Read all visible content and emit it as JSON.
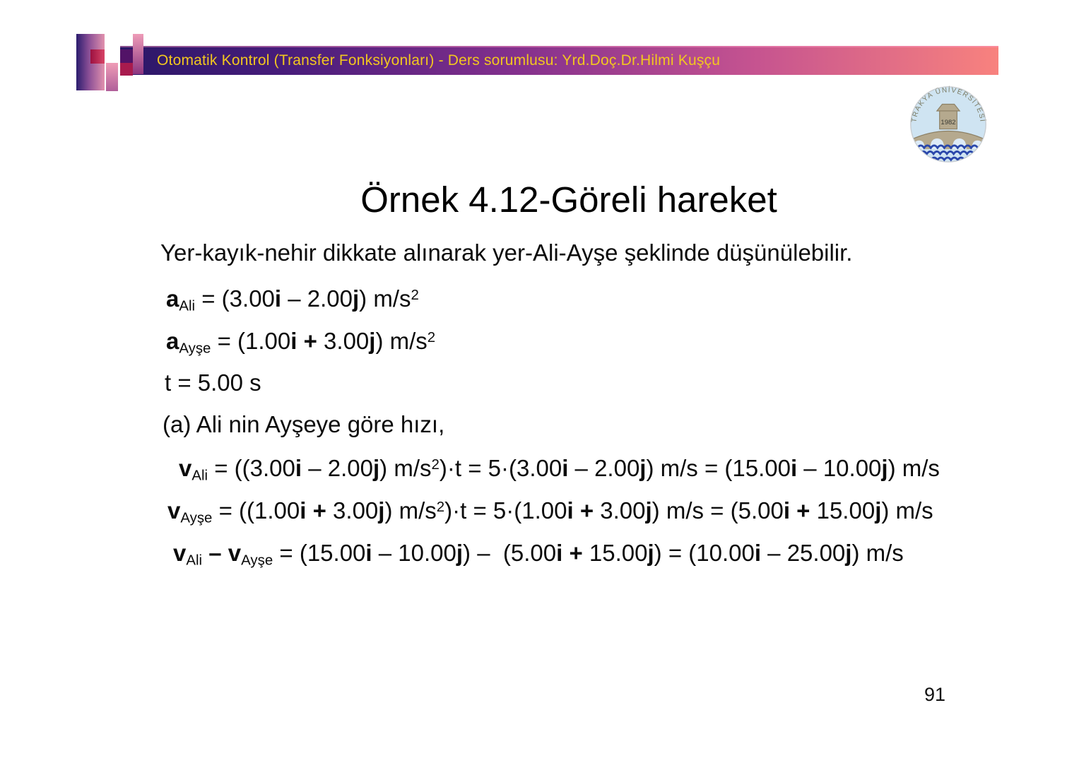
{
  "header": {
    "title": "Otomatik Kontrol (Transfer Fonksiyonları) - Ders sorumlusu: Yrd.Doç.Dr.Hilmi Kuşçu"
  },
  "logo": {
    "institution": "TRAKYA ÜNİVERSİTESİ",
    "year": "1982"
  },
  "slide": {
    "title": "Örnek 4.12-Göreli hareket",
    "intro": "Yer-kayık-nehir dikkate alınarak yer-Ali-Ayşe şeklinde düşünülebilir.",
    "page_number": "91",
    "formulas": [
      [
        {
          "t": "a",
          "s": "b"
        },
        {
          "t": "Ali",
          "s": "sub"
        },
        {
          "t": " = (3.00",
          "s": ""
        },
        {
          "t": "i",
          "s": "b"
        },
        {
          "t": " – 2.00",
          "s": ""
        },
        {
          "t": "j",
          "s": "b"
        },
        {
          "t": ") m/s",
          "s": ""
        },
        {
          "t": "2",
          "s": "sup"
        }
      ],
      [
        {
          "t": "a",
          "s": "b"
        },
        {
          "t": "Ayşe",
          "s": "sub"
        },
        {
          "t": " = (1.00",
          "s": ""
        },
        {
          "t": "i",
          "s": "b"
        },
        {
          "t": " + ",
          "s": "b"
        },
        {
          "t": "3.00",
          "s": ""
        },
        {
          "t": "j",
          "s": "b"
        },
        {
          "t": ") m/s",
          "s": ""
        },
        {
          "t": "2",
          "s": "sup"
        }
      ],
      [
        {
          "t": "t = 5.00 s",
          "s": ""
        }
      ],
      [
        {
          "t": "(a) Ali nin Ayşeye göre hızı,",
          "s": ""
        }
      ],
      [
        {
          "t": "v",
          "s": "b"
        },
        {
          "t": "Ali",
          "s": "sub"
        },
        {
          "t": " = ((3.00",
          "s": ""
        },
        {
          "t": "i",
          "s": "b"
        },
        {
          "t": " – 2.00",
          "s": ""
        },
        {
          "t": "j",
          "s": "b"
        },
        {
          "t": ") m/s",
          "s": ""
        },
        {
          "t": "2",
          "s": "sup"
        },
        {
          "t": ")·t = 5·(3.00",
          "s": ""
        },
        {
          "t": "i",
          "s": "b"
        },
        {
          "t": " – 2.00",
          "s": ""
        },
        {
          "t": "j",
          "s": "b"
        },
        {
          "t": ") m/s = (15.00",
          "s": ""
        },
        {
          "t": "i",
          "s": "b"
        },
        {
          "t": " – 10.00",
          "s": ""
        },
        {
          "t": "j",
          "s": "b"
        },
        {
          "t": ") m/s",
          "s": ""
        }
      ],
      [
        {
          "t": "v",
          "s": "b"
        },
        {
          "t": "Ayşe",
          "s": "sub"
        },
        {
          "t": " = ((1.00",
          "s": ""
        },
        {
          "t": "i",
          "s": "b"
        },
        {
          "t": " + ",
          "s": "b"
        },
        {
          "t": "3.00",
          "s": ""
        },
        {
          "t": "j",
          "s": "b"
        },
        {
          "t": ") m/s",
          "s": ""
        },
        {
          "t": "2",
          "s": "sup"
        },
        {
          "t": ")·t = 5·(1.00",
          "s": ""
        },
        {
          "t": "i",
          "s": "b"
        },
        {
          "t": " + ",
          "s": "b"
        },
        {
          "t": "3.00",
          "s": ""
        },
        {
          "t": "j",
          "s": "b"
        },
        {
          "t": ") m/s = (5.00",
          "s": ""
        },
        {
          "t": "i",
          "s": "b"
        },
        {
          "t": " + ",
          "s": "b"
        },
        {
          "t": "15.00",
          "s": ""
        },
        {
          "t": "j",
          "s": "b"
        },
        {
          "t": ") m/s",
          "s": ""
        }
      ],
      [
        {
          "t": "v",
          "s": "b"
        },
        {
          "t": "Ali",
          "s": "sub"
        },
        {
          "t": " – ",
          "s": "b"
        },
        {
          "t": "v",
          "s": "b"
        },
        {
          "t": "Ayşe",
          "s": "sub"
        },
        {
          "t": " = (15.00",
          "s": ""
        },
        {
          "t": "i",
          "s": "b"
        },
        {
          "t": " – 10.00",
          "s": ""
        },
        {
          "t": "j",
          "s": "b"
        },
        {
          "t": ") –  (5.00",
          "s": ""
        },
        {
          "t": "i",
          "s": "b"
        },
        {
          "t": " + ",
          "s": "b"
        },
        {
          "t": "15.00",
          "s": ""
        },
        {
          "t": "j",
          "s": "b"
        },
        {
          "t": ") = (10.00",
          "s": ""
        },
        {
          "t": "i",
          "s": "b"
        },
        {
          "t": " – 25.00",
          "s": ""
        },
        {
          "t": "j",
          "s": "b"
        },
        {
          "t": ") m/s",
          "s": ""
        }
      ]
    ]
  },
  "colors": {
    "header_gradient_left": "#2A1767",
    "header_gradient_right": "#F8827E",
    "header_text": "#F2C71F",
    "body_text": "#0B0B0B",
    "logo_sky": "#CFE4F2",
    "logo_bridge": "#B5A98E",
    "logo_waves": "#2A47AB",
    "logo_arc_text": "#7B7B64"
  }
}
